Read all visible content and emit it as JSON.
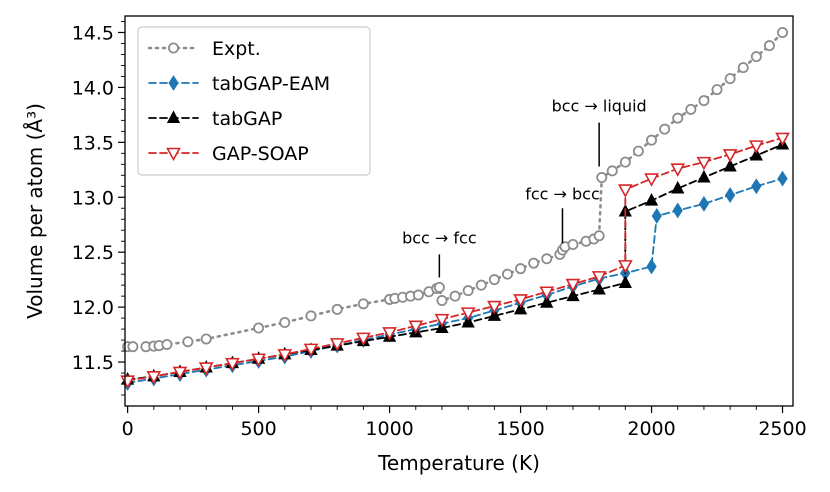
{
  "chart_data": {
    "type": "line",
    "xlabel": "Temperature (K)",
    "ylabel": "Volume per atom (Å³)",
    "xlim": [
      -10,
      2540
    ],
    "ylim": [
      11.1,
      14.65
    ],
    "xticks": [
      0,
      500,
      1000,
      1500,
      2000,
      2500
    ],
    "yticks": [
      11.5,
      12.0,
      12.5,
      13.0,
      13.5,
      14.0,
      14.5
    ],
    "xtick_labels": [
      "0",
      "500",
      "1000",
      "1500",
      "2000",
      "2500"
    ],
    "ytick_labels": [
      "11.5",
      "12.0",
      "12.5",
      "13.0",
      "13.5",
      "14.0",
      "14.5"
    ],
    "legend_position": "upper-left",
    "series": [
      {
        "name": "Expt.",
        "color": "#8c8c8c",
        "marker": "open-circle",
        "linestyle": "dotted",
        "x": [
          0,
          20,
          70,
          100,
          120,
          150,
          230,
          300,
          500,
          600,
          700,
          800,
          900,
          1000,
          1020,
          1050,
          1080,
          1110,
          1150,
          1180,
          1190,
          1200,
          1250,
          1300,
          1350,
          1400,
          1450,
          1500,
          1550,
          1600,
          1650,
          1660,
          1670,
          1700,
          1750,
          1780,
          1800,
          1810,
          1850,
          1900,
          1950,
          2000,
          2050,
          2100,
          2150,
          2200,
          2250,
          2300,
          2350,
          2400,
          2450,
          2500
        ],
        "y": [
          11.64,
          11.64,
          11.64,
          11.645,
          11.65,
          11.66,
          11.685,
          11.71,
          11.81,
          11.86,
          11.92,
          11.98,
          12.03,
          12.07,
          12.08,
          12.09,
          12.1,
          12.11,
          12.14,
          12.17,
          12.18,
          12.06,
          12.1,
          12.15,
          12.2,
          12.25,
          12.3,
          12.35,
          12.4,
          12.44,
          12.48,
          12.52,
          12.55,
          12.57,
          12.6,
          12.62,
          12.65,
          13.18,
          13.24,
          13.32,
          13.42,
          13.52,
          13.62,
          13.72,
          13.8,
          13.88,
          13.98,
          14.08,
          14.18,
          14.28,
          14.38,
          14.5
        ]
      },
      {
        "name": "tabGAP-EAM",
        "color": "#1f77b4",
        "marker": "diamond",
        "linestyle": "dashed",
        "x": [
          0,
          100,
          200,
          300,
          400,
          500,
          600,
          700,
          800,
          900,
          1000,
          1100,
          1200,
          1300,
          1400,
          1500,
          1600,
          1700,
          1800,
          1900,
          2000,
          2020,
          2100,
          2200,
          2300,
          2400,
          2500
        ],
        "y": [
          11.31,
          11.35,
          11.39,
          11.43,
          11.47,
          11.51,
          11.55,
          11.6,
          11.65,
          11.7,
          11.75,
          11.8,
          11.85,
          11.9,
          11.97,
          12.04,
          12.11,
          12.19,
          12.26,
          12.31,
          12.37,
          12.83,
          12.88,
          12.94,
          13.02,
          13.1,
          13.17
        ]
      },
      {
        "name": "tabGAP",
        "color": "#000000",
        "marker": "filled-triangle",
        "linestyle": "dashed",
        "x": [
          0,
          100,
          200,
          300,
          400,
          500,
          600,
          700,
          800,
          900,
          1000,
          1100,
          1200,
          1300,
          1400,
          1500,
          1600,
          1700,
          1800,
          1900,
          1900,
          2000,
          2100,
          2200,
          2300,
          2400,
          2500
        ],
        "y": [
          11.34,
          11.37,
          11.41,
          11.45,
          11.49,
          11.53,
          11.57,
          11.61,
          11.65,
          11.69,
          11.73,
          11.77,
          11.81,
          11.86,
          11.92,
          11.98,
          12.04,
          12.1,
          12.16,
          12.22,
          12.87,
          12.97,
          13.08,
          13.18,
          13.28,
          13.38,
          13.48
        ]
      },
      {
        "name": "GAP-SOAP",
        "color": "#d62728",
        "marker": "open-triangle-down",
        "linestyle": "dashed",
        "x": [
          0,
          100,
          200,
          300,
          400,
          500,
          600,
          700,
          800,
          900,
          1000,
          1100,
          1200,
          1300,
          1400,
          1500,
          1600,
          1700,
          1800,
          1900,
          1900,
          2000,
          2100,
          2200,
          2300,
          2400,
          2500
        ],
        "y": [
          11.33,
          11.37,
          11.41,
          11.45,
          11.49,
          11.53,
          11.57,
          11.62,
          11.67,
          11.72,
          11.77,
          11.83,
          11.89,
          11.95,
          12.01,
          12.07,
          12.14,
          12.21,
          12.28,
          12.38,
          13.07,
          13.17,
          13.26,
          13.32,
          13.39,
          13.47,
          13.54
        ]
      }
    ],
    "annotations": [
      {
        "text": "bcc → fcc",
        "at_x": 1190,
        "line_y": [
          12.27,
          12.48
        ],
        "text_y": 12.58
      },
      {
        "text": "fcc → bcc",
        "at_x": 1660,
        "line_y": [
          12.58,
          12.9
        ],
        "text_y": 12.98
      },
      {
        "text": "bcc → liquid",
        "at_x": 1800,
        "line_y": [
          13.28,
          13.68
        ],
        "text_y": 13.78
      }
    ]
  }
}
